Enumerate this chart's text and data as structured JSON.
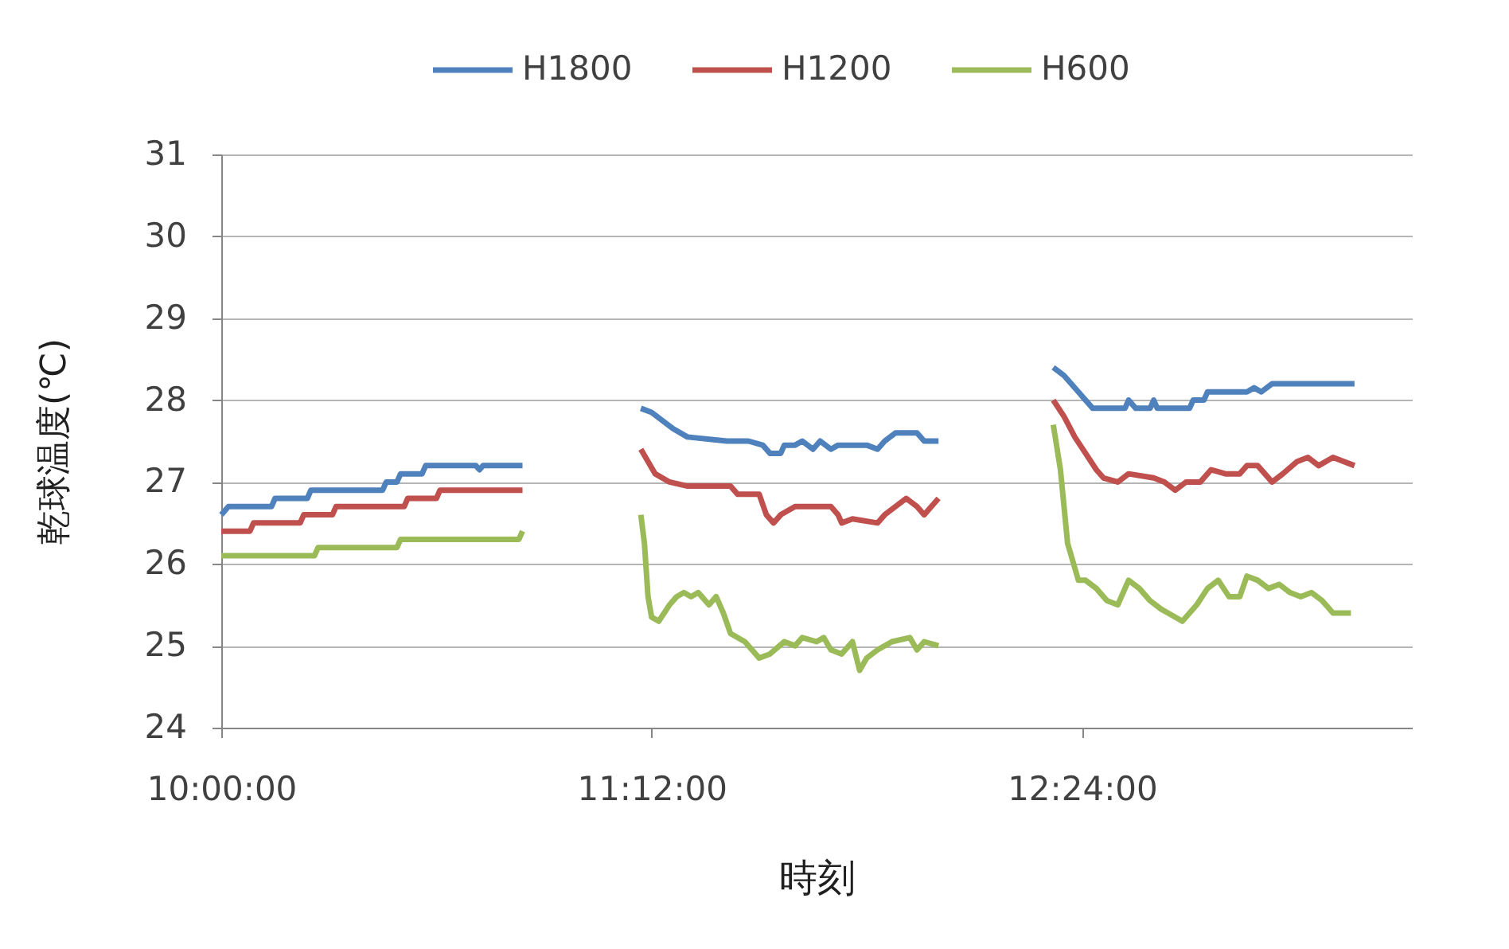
{
  "chart_data": {
    "type": "line",
    "xlabel": "時刻",
    "ylabel": "乾球温度(℃)",
    "xlim": [
      10,
      13.32
    ],
    "xticks": [
      {
        "value": 10,
        "label": "10:00:00"
      },
      {
        "value": 11.2,
        "label": "11:12:00"
      },
      {
        "value": 12.4,
        "label": "12:24:00"
      }
    ],
    "ylim": [
      24,
      31
    ],
    "yticks": [
      24,
      25,
      26,
      27,
      28,
      29,
      30,
      31
    ],
    "grid": "y",
    "legend": "top",
    "series": [
      {
        "name": "H1800",
        "color": "#4f81bd",
        "x": [
          10.0,
          10.02,
          10.14,
          10.15,
          10.24,
          10.25,
          10.45,
          10.46,
          10.49,
          10.5,
          10.56,
          10.57,
          10.71,
          10.72,
          10.73,
          10.84,
          11.0,
          11.17,
          11.2,
          11.23,
          11.26,
          11.3,
          11.41,
          11.47,
          11.51,
          11.53,
          11.56,
          11.57,
          11.6,
          11.62,
          11.65,
          11.67,
          11.7,
          11.72,
          11.8,
          11.83,
          11.85,
          11.88,
          11.94,
          11.96,
          12.0,
          12.17,
          12.32,
          12.35,
          12.37,
          12.39,
          12.41,
          12.43,
          12.52,
          12.53,
          12.55,
          12.59,
          12.6,
          12.61,
          12.7,
          12.71,
          12.74,
          12.75,
          12.86,
          12.88,
          12.9,
          12.93,
          13.16
        ],
        "values": [
          26.6,
          26.7,
          26.7,
          26.8,
          26.8,
          26.9,
          26.9,
          27.0,
          27.0,
          27.1,
          27.1,
          27.2,
          27.2,
          27.15,
          27.2,
          27.2,
          null,
          27.9,
          27.85,
          27.75,
          27.65,
          27.55,
          27.5,
          27.5,
          27.45,
          27.35,
          27.35,
          27.45,
          27.45,
          27.5,
          27.4,
          27.5,
          27.4,
          27.45,
          27.45,
          27.4,
          27.5,
          27.6,
          27.6,
          27.5,
          27.5,
          null,
          28.4,
          28.3,
          28.2,
          28.1,
          28.0,
          27.9,
          27.9,
          28.0,
          27.9,
          27.9,
          28.0,
          27.9,
          27.9,
          28.0,
          28.0,
          28.1,
          28.1,
          28.15,
          28.1,
          28.2,
          28.2
        ]
      },
      {
        "name": "H1200",
        "color": "#c0504d",
        "x": [
          10.0,
          10.08,
          10.09,
          10.22,
          10.23,
          10.31,
          10.32,
          10.51,
          10.52,
          10.6,
          10.61,
          10.84,
          11.0,
          11.17,
          11.19,
          11.21,
          11.25,
          11.3,
          11.42,
          11.44,
          11.5,
          11.52,
          11.54,
          11.56,
          11.6,
          11.7,
          11.72,
          11.73,
          11.76,
          11.83,
          11.85,
          11.88,
          11.91,
          11.94,
          11.96,
          11.98,
          12.0,
          12.17,
          12.32,
          12.35,
          12.38,
          12.41,
          12.44,
          12.46,
          12.5,
          12.53,
          12.6,
          12.63,
          12.66,
          12.69,
          12.73,
          12.76,
          12.8,
          12.84,
          12.86,
          12.89,
          12.93,
          12.96,
          13.0,
          13.03,
          13.06,
          13.1,
          13.16
        ],
        "values": [
          26.4,
          26.4,
          26.5,
          26.5,
          26.6,
          26.6,
          26.7,
          26.7,
          26.8,
          26.8,
          26.9,
          26.9,
          null,
          27.4,
          27.25,
          27.1,
          27.0,
          26.95,
          26.95,
          26.85,
          26.85,
          26.6,
          26.5,
          26.6,
          26.7,
          26.7,
          26.6,
          26.5,
          26.55,
          26.5,
          26.6,
          26.7,
          26.8,
          26.7,
          26.6,
          26.7,
          26.8,
          null,
          28.0,
          27.8,
          27.55,
          27.35,
          27.15,
          27.05,
          27.0,
          27.1,
          27.05,
          27.0,
          26.9,
          27.0,
          27.0,
          27.15,
          27.1,
          27.1,
          27.2,
          27.2,
          27.0,
          27.1,
          27.25,
          27.3,
          27.2,
          27.3,
          27.2
        ]
      },
      {
        "name": "H600",
        "color": "#9bbb59",
        "x": [
          10.0,
          10.26,
          10.27,
          10.49,
          10.5,
          10.83,
          10.84,
          11.0,
          11.17,
          11.18,
          11.19,
          11.2,
          11.22,
          11.25,
          11.27,
          11.29,
          11.31,
          11.33,
          11.34,
          11.36,
          11.38,
          11.4,
          11.42,
          11.46,
          11.5,
          11.53,
          11.57,
          11.6,
          11.62,
          11.66,
          11.68,
          11.7,
          11.73,
          11.76,
          11.78,
          11.8,
          11.83,
          11.87,
          11.92,
          11.94,
          11.96,
          12.0,
          12.17,
          12.32,
          12.34,
          12.36,
          12.39,
          12.41,
          12.44,
          12.47,
          12.5,
          12.53,
          12.56,
          12.59,
          12.62,
          12.64,
          12.68,
          12.7,
          12.72,
          12.75,
          12.78,
          12.81,
          12.84,
          12.86,
          12.89,
          12.92,
          12.95,
          12.98,
          13.01,
          13.04,
          13.07,
          13.1,
          13.15
        ],
        "values": [
          26.1,
          26.1,
          26.2,
          26.2,
          26.3,
          26.3,
          26.4,
          null,
          26.6,
          26.25,
          25.6,
          25.35,
          25.3,
          25.5,
          25.6,
          25.65,
          25.6,
          25.65,
          25.6,
          25.5,
          25.6,
          25.4,
          25.15,
          25.05,
          24.85,
          24.9,
          25.05,
          25.0,
          25.1,
          25.05,
          25.1,
          24.95,
          24.9,
          25.05,
          24.7,
          24.85,
          24.95,
          25.05,
          25.1,
          24.95,
          25.05,
          25.0,
          null,
          27.7,
          27.15,
          26.25,
          25.8,
          25.8,
          25.7,
          25.55,
          25.5,
          25.8,
          25.7,
          25.55,
          25.45,
          25.4,
          25.3,
          25.4,
          25.5,
          25.7,
          25.8,
          25.6,
          25.6,
          25.85,
          25.8,
          25.7,
          25.75,
          25.65,
          25.6,
          25.65,
          25.55,
          25.4,
          25.4
        ]
      }
    ]
  }
}
